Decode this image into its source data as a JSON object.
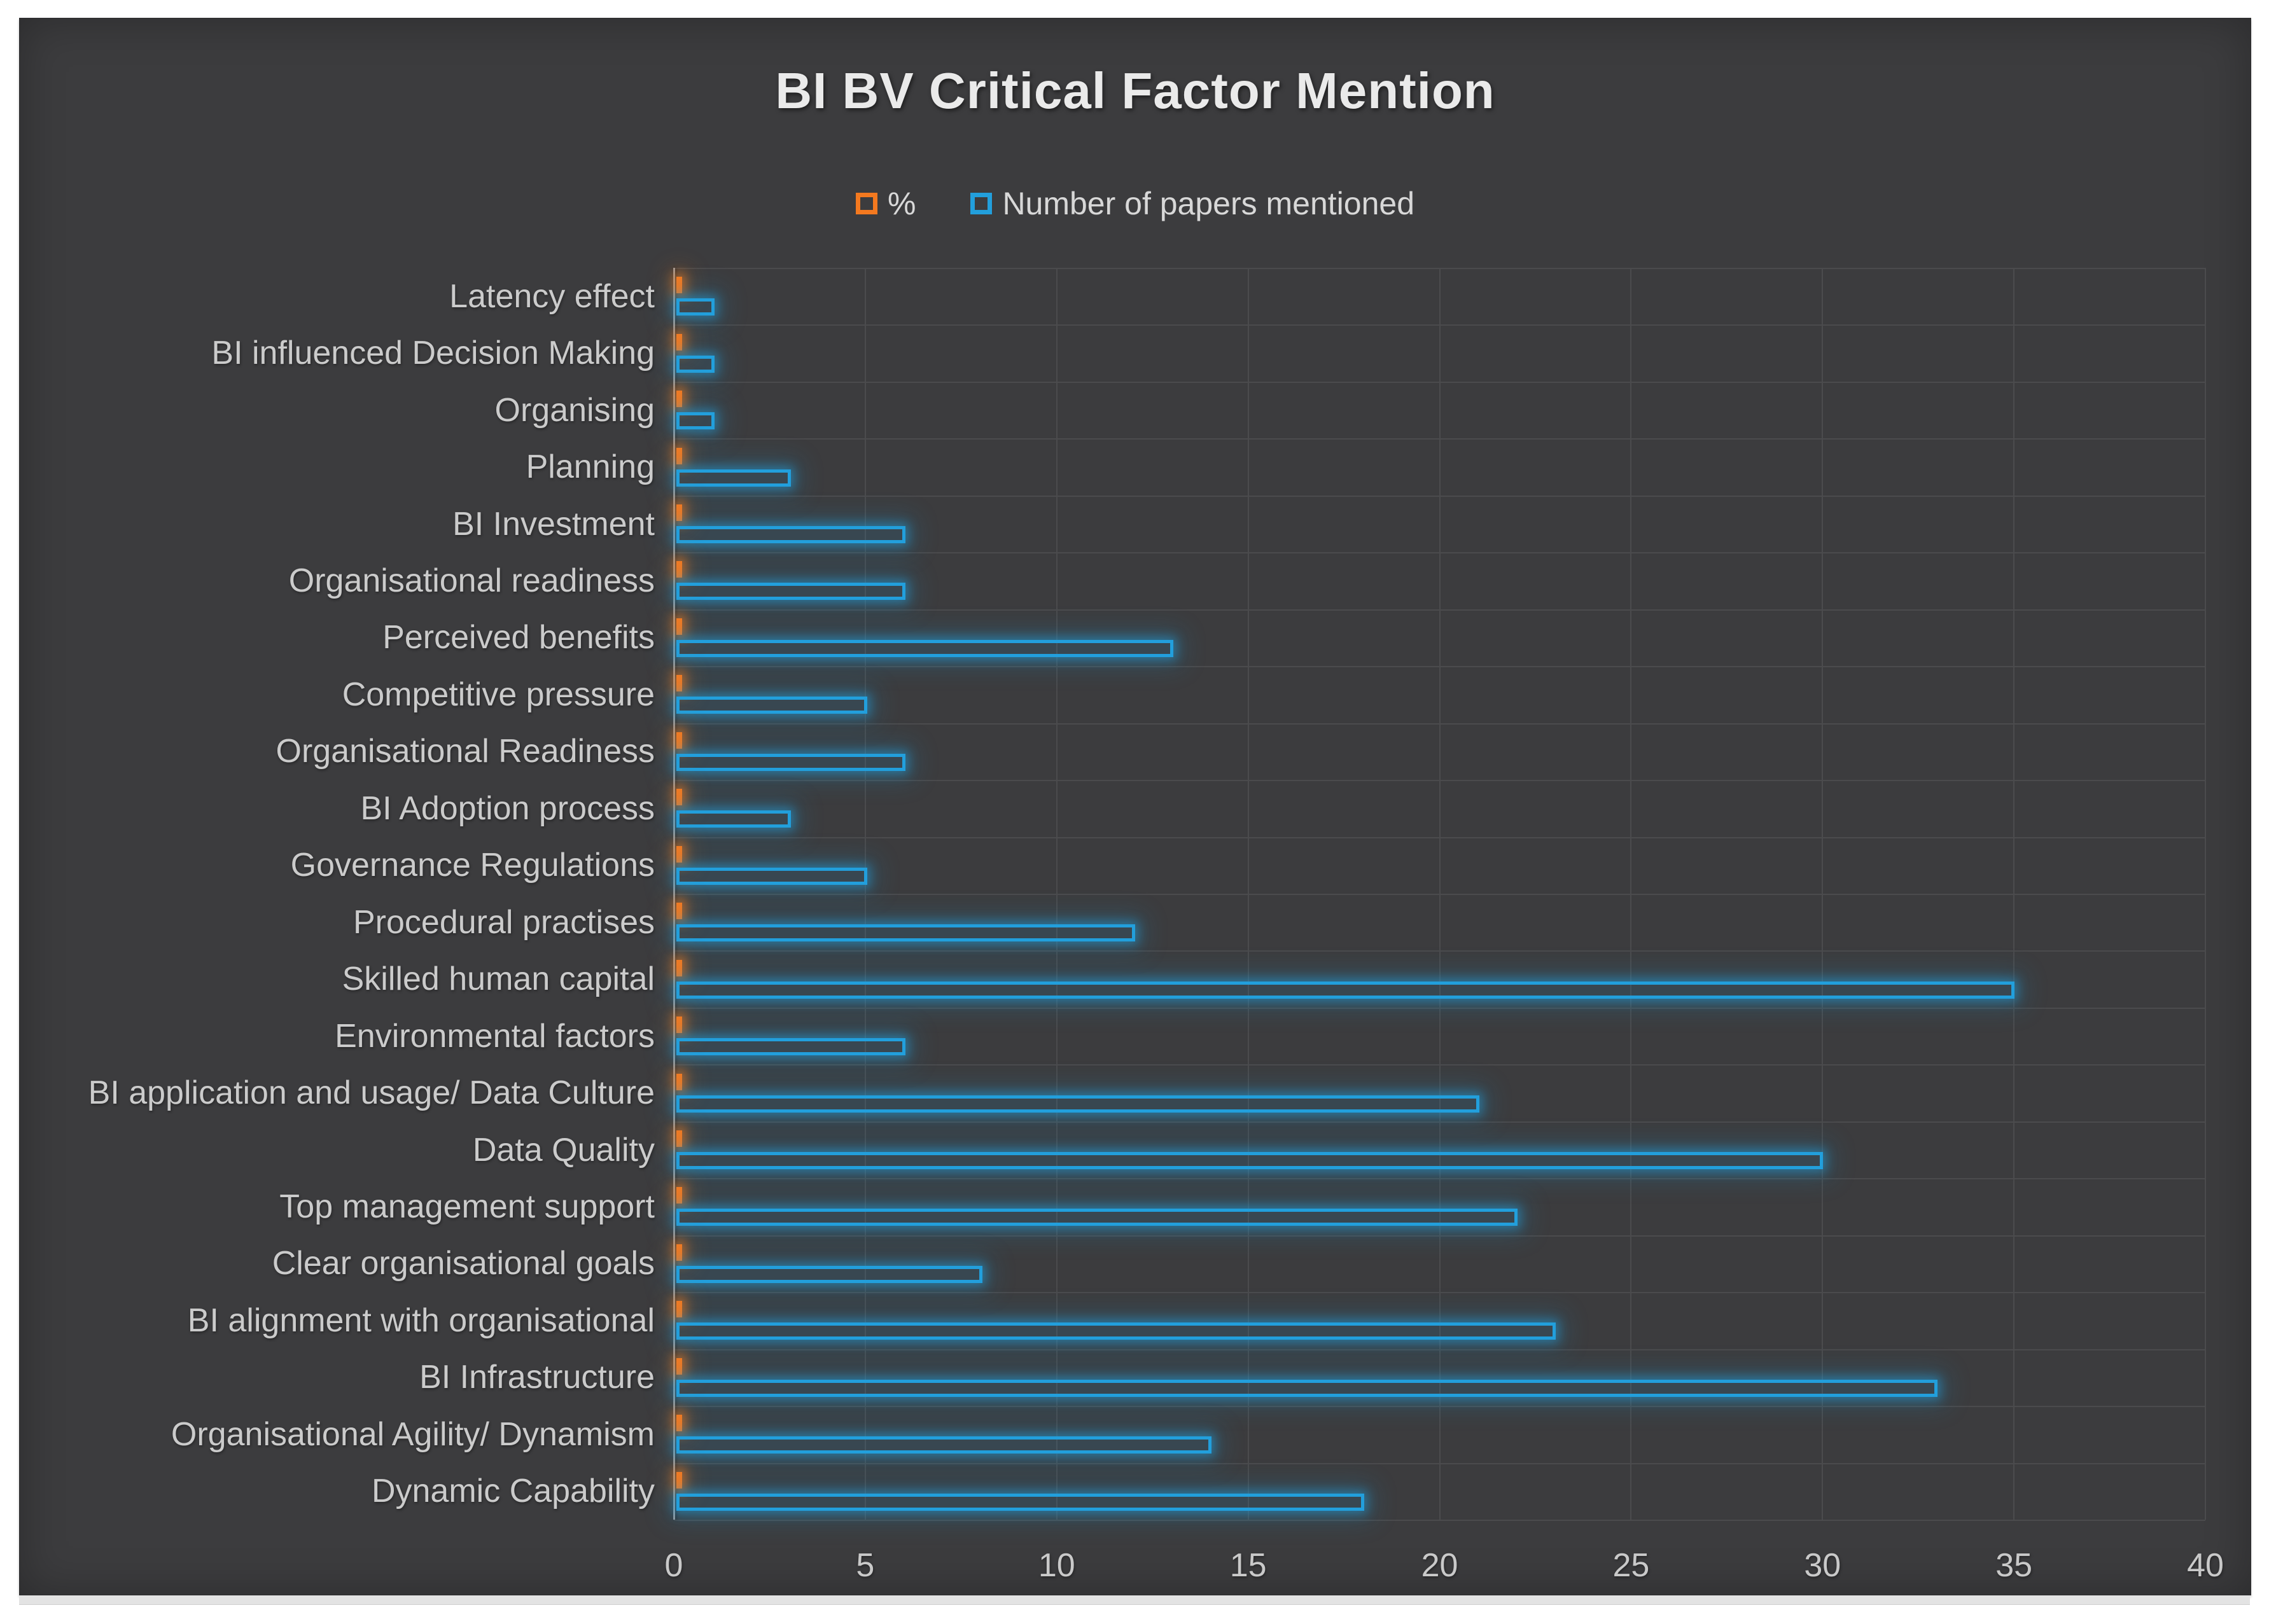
{
  "chart": {
    "background": "#3C3C3E",
    "grid_color": "#4B4B4D",
    "axis_line_color": "#9A9A9C",
    "text_color": "#CBCBCB",
    "series_colors": {
      "percent": "#F4791F",
      "papers": "#229FDC"
    },
    "legend": [
      {
        "label": "%"
      },
      {
        "label": "Number of papers mentioned"
      }
    ]
  },
  "chart_data": {
    "type": "bar",
    "orientation": "horizontal",
    "title": "BI BV Critical Factor Mention",
    "categories": [
      "Latency effect",
      "BI influenced Decision Making",
      "Organising",
      "Planning",
      "BI Investment",
      "Organisational readiness",
      "Perceived benefits",
      "Competitive pressure",
      "Organisational Readiness",
      "BI Adoption process",
      "Governance Regulations",
      "Procedural practises",
      "Skilled human capital",
      "Environmental factors",
      "BI application and usage/ Data Culture",
      "Data Quality",
      "Top management support",
      "Clear organisational goals",
      "BI alignment with organisational",
      "BI Infrastructure",
      "Organisational Agility/ Dynamism",
      "Dynamic Capability"
    ],
    "series": [
      {
        "name": "%",
        "values": [
          0.004,
          0.004,
          0.004,
          0.011,
          0.022,
          0.022,
          0.048,
          0.018,
          0.022,
          0.011,
          0.018,
          0.044,
          0.129,
          0.022,
          0.077,
          0.11,
          0.081,
          0.029,
          0.085,
          0.121,
          0.051,
          0.066
        ]
      },
      {
        "name": "Number of papers mentioned",
        "values": [
          1,
          1,
          1,
          3,
          6,
          6,
          13,
          5,
          6,
          3,
          5,
          12,
          35,
          6,
          21,
          30,
          22,
          8,
          23,
          33,
          14,
          18
        ]
      }
    ],
    "xlim": [
      0,
      40
    ],
    "xticks": [
      0,
      5,
      10,
      15,
      20,
      25,
      30,
      35,
      40
    ],
    "grid": true,
    "legend_position": "top"
  }
}
